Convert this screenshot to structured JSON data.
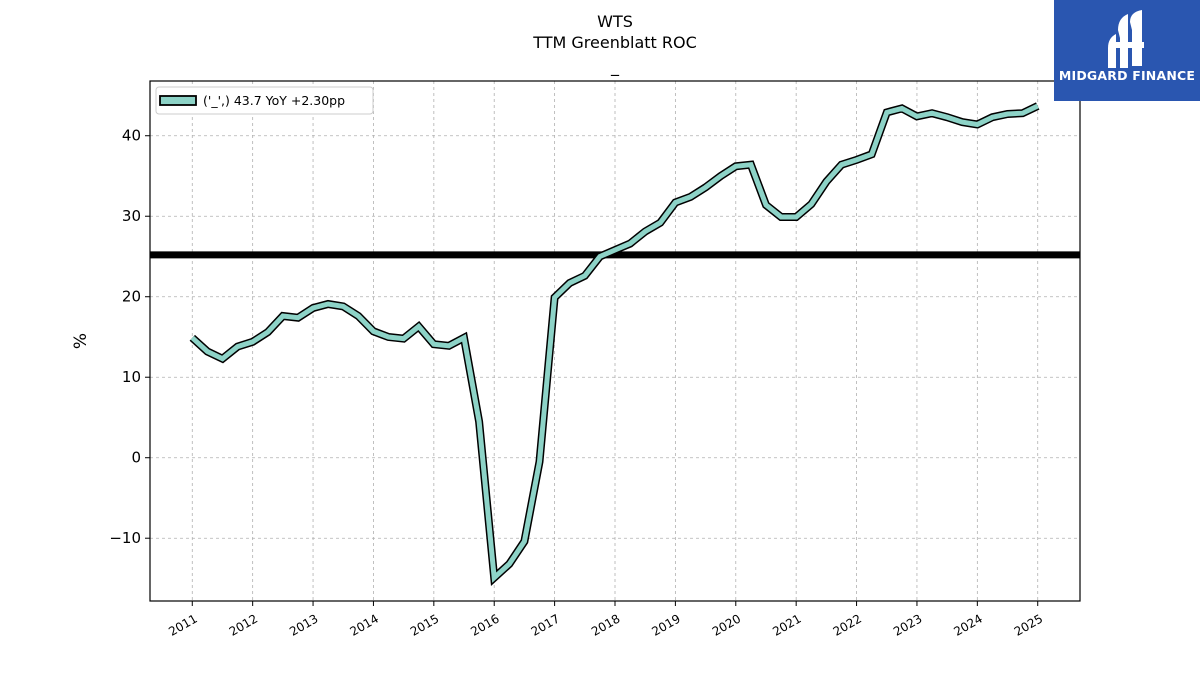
{
  "header": {
    "title": "WTS",
    "subtitle": "TTM Greenblatt ROC",
    "subtitle2": "_"
  },
  "logo": {
    "text": "MIDGARD FINANCE",
    "color": "#2a56b0"
  },
  "chart_data": {
    "type": "line",
    "ylabel": "%",
    "xlabel": "",
    "xlim": [
      2010.3,
      2025.7
    ],
    "ylim": [
      -17.8,
      46.8
    ],
    "yticks": [
      -10,
      0,
      10,
      20,
      30,
      40
    ],
    "xticks": [
      "2011",
      "2012",
      "2013",
      "2014",
      "2015",
      "2016",
      "2017",
      "2018",
      "2019",
      "2020",
      "2021",
      "2022",
      "2023",
      "2024",
      "2025"
    ],
    "grid": true,
    "legend": {
      "position": "top-left",
      "label": "('_',) 43.7 YoY +2.30pp"
    },
    "reference_line": {
      "y": 25.2,
      "color": "#000000"
    },
    "series": [
      {
        "color": "#8dd3c7",
        "x": [
          2011.0,
          2011.25,
          2011.5,
          2011.75,
          2012.0,
          2012.25,
          2012.5,
          2012.75,
          2013.0,
          2013.25,
          2013.5,
          2013.75,
          2014.0,
          2014.25,
          2014.5,
          2014.75,
          2015.0,
          2015.25,
          2015.5,
          2015.75,
          2016.0,
          2016.25,
          2016.5,
          2016.75,
          2017.0,
          2017.25,
          2017.5,
          2017.75,
          2018.0,
          2018.25,
          2018.5,
          2018.75,
          2019.0,
          2019.25,
          2019.5,
          2019.75,
          2020.0,
          2020.25,
          2020.5,
          2020.75,
          2021.0,
          2021.25,
          2021.5,
          2021.75,
          2022.0,
          2022.25,
          2022.5,
          2022.75,
          2023.0,
          2023.25,
          2023.5,
          2023.75,
          2024.0,
          2024.25,
          2024.5,
          2024.75,
          2025.0
        ],
        "y": [
          14.9,
          13.2,
          12.3,
          13.8,
          14.4,
          15.6,
          17.6,
          17.4,
          18.6,
          19.1,
          18.8,
          17.6,
          15.7,
          15.0,
          14.8,
          16.3,
          14.1,
          13.9,
          14.9,
          4.5,
          -14.9,
          -13.2,
          -10.4,
          -0.5,
          19.9,
          21.7,
          22.6,
          25.0,
          25.8,
          26.6,
          28.1,
          29.2,
          31.7,
          32.4,
          33.6,
          35.0,
          36.2,
          36.4,
          31.4,
          29.9,
          29.9,
          31.5,
          34.3,
          36.4,
          37.0,
          37.7,
          42.9,
          43.4,
          42.4,
          42.8,
          42.3,
          41.7,
          41.4,
          42.3,
          42.7,
          42.8,
          43.7
        ]
      }
    ]
  }
}
